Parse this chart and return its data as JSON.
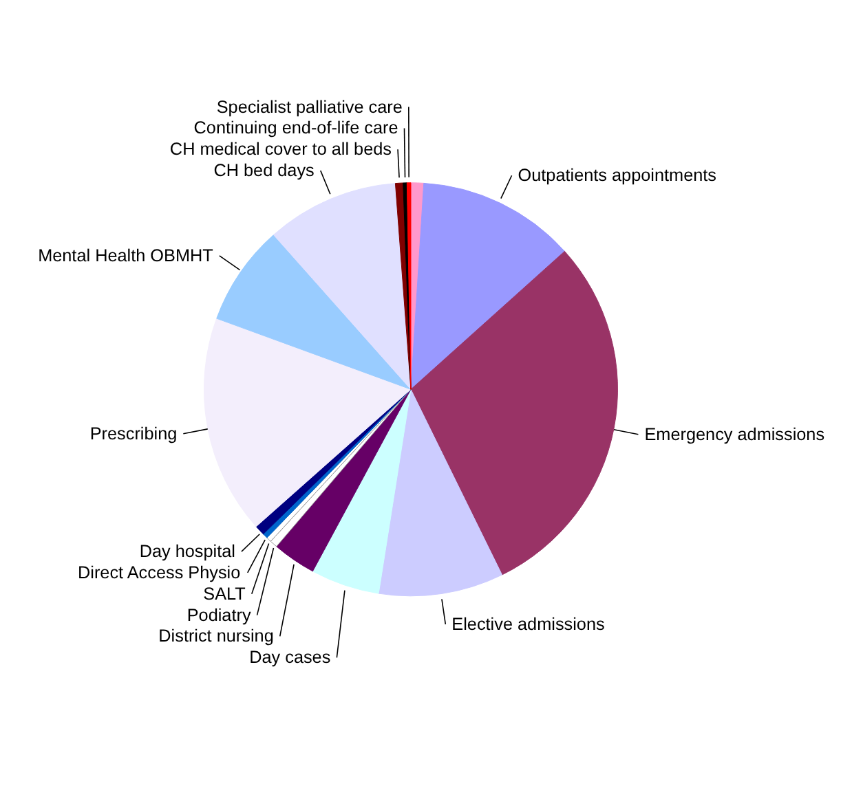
{
  "chart_data": {
    "type": "pie",
    "categories": [
      null,
      "Outpatients appointments",
      "Emergency admissions",
      "Elective admissions",
      "Day cases",
      "District nursing",
      "Podiatry",
      "SALT",
      "Direct Access Physio",
      "Day hospital",
      "Prescribing",
      "Mental Health OBMHT",
      "CH bed days",
      "CH medical cover to all beds",
      "Continuing end-of-life care",
      "Specialist palliative care"
    ],
    "values": [
      1.0,
      12.4,
      29.5,
      9.8,
      5.4,
      3.4,
      0.6,
      0.4,
      0.4,
      0.8,
      17.2,
      7.9,
      10.4,
      0.6,
      0.3,
      0.3
    ],
    "colors": [
      "#ff99cc",
      "#9999ff",
      "#993366",
      "#ccccff",
      "#ccffff",
      "#660066",
      "#ffffff",
      "#ffffff",
      "#0066cc",
      "#000080",
      "#f3eefc",
      "#99ccff",
      "#e0e0ff",
      "#800000",
      "#000000",
      "#ff0000"
    ]
  }
}
